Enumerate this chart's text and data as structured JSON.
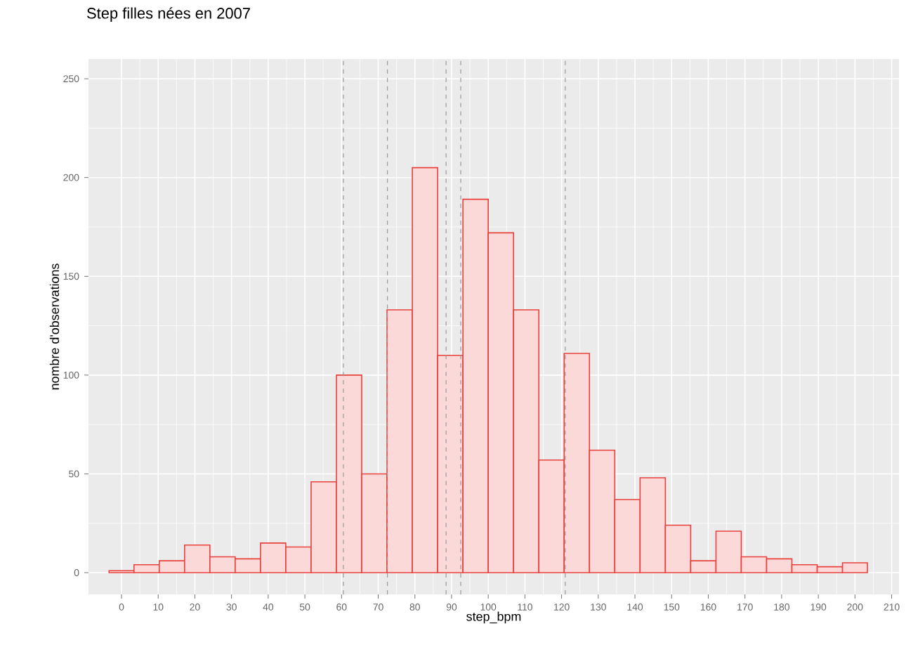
{
  "chart_data": {
    "type": "histogram",
    "title": "Step filles nées en 2007",
    "xlabel": "step_bpm",
    "ylabel": "nombre d'observations",
    "bins": [
      -3.4,
      3.4,
      10.3,
      17.2,
      24.1,
      31.0,
      37.9,
      44.8,
      51.7,
      58.6,
      65.5,
      72.4,
      79.3,
      86.2,
      93.1,
      100.0,
      106.9,
      113.8,
      120.7,
      127.6,
      134.5,
      141.4,
      148.3,
      155.2,
      162.1,
      169.0,
      175.9,
      182.8,
      189.7,
      196.6,
      203.4
    ],
    "values": [
      1,
      4,
      6,
      14,
      8,
      7,
      15,
      13,
      46,
      100,
      50,
      133,
      205,
      110,
      189,
      172,
      133,
      57,
      111,
      62,
      37,
      48,
      24,
      6,
      21,
      8,
      7,
      4,
      3,
      5
    ],
    "color": "#e8413c",
    "xlim": [
      -9,
      212
    ],
    "ylim": [
      -11,
      260
    ],
    "xticks": [
      0,
      10,
      20,
      30,
      40,
      50,
      60,
      70,
      80,
      90,
      100,
      110,
      120,
      130,
      140,
      150,
      160,
      170,
      180,
      190,
      200,
      210
    ],
    "yticks": [
      0,
      50,
      100,
      150,
      200,
      250
    ],
    "grid": true,
    "ref_lines": [
      {
        "axis": "x",
        "value": 60.5,
        "color": "#999999",
        "line_style": "dashed"
      },
      {
        "axis": "x",
        "value": 72.5,
        "color": "#999999",
        "line_style": "dashed"
      },
      {
        "axis": "x",
        "value": 88.5,
        "color": "#999999",
        "line_style": "dashed"
      },
      {
        "axis": "x",
        "value": 92.5,
        "color": "#999999",
        "line_style": "dashed"
      },
      {
        "axis": "x",
        "value": 121,
        "color": "#999999",
        "line_style": "dashed"
      }
    ]
  }
}
